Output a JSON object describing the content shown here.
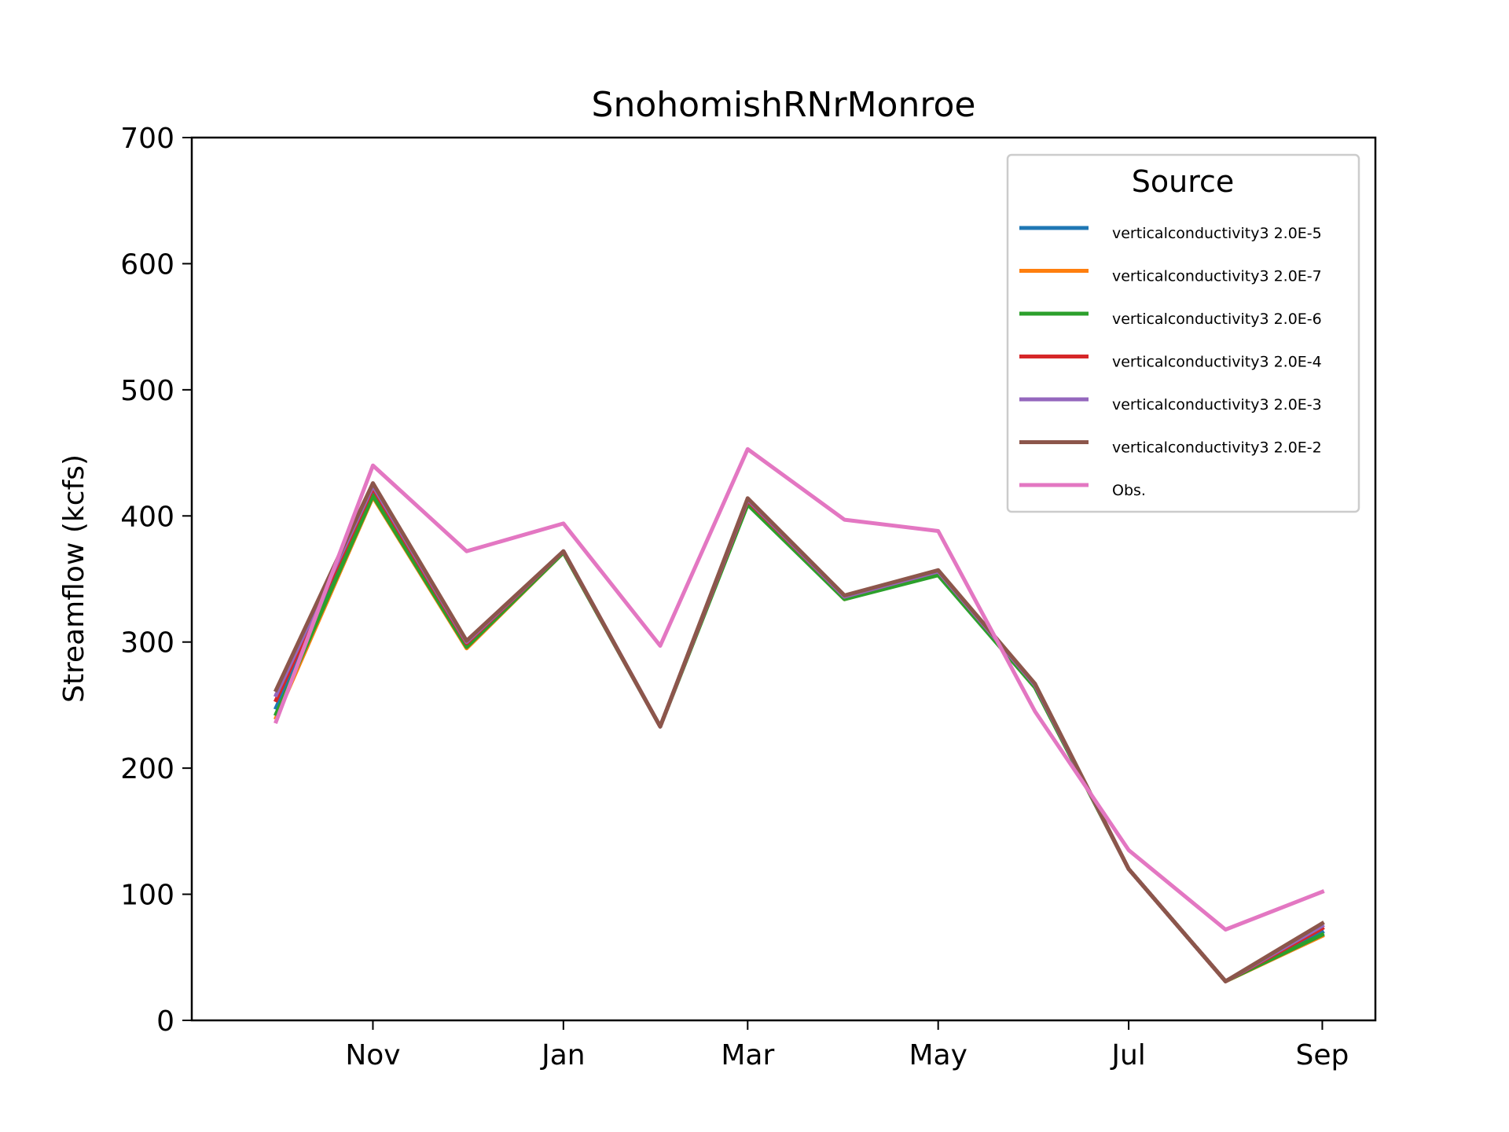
{
  "chart_data": {
    "type": "line",
    "title": "SnohomishRNrMonroe",
    "xlabel": "",
    "ylabel": "Streamflow (kcfs)",
    "x": [
      "2000-10-01",
      "2000-11-01",
      "2000-12-01",
      "2001-01-01",
      "2001-02-01",
      "2001-03-01",
      "2001-04-01",
      "2001-05-01",
      "2001-06-01",
      "2001-07-01",
      "2001-08-01",
      "2001-09-01"
    ],
    "xticks": [
      {
        "date": "2000-11-01",
        "label": "Nov"
      },
      {
        "date": "2001-01-01",
        "label": "Jan"
      },
      {
        "date": "2001-03-01",
        "label": "Mar"
      },
      {
        "date": "2001-05-01",
        "label": "May"
      },
      {
        "date": "2001-07-01",
        "label": "Jul"
      },
      {
        "date": "2001-09-01",
        "label": "Sep"
      }
    ],
    "xlim": [
      "2000-09-04",
      "2001-09-18"
    ],
    "ylim": [
      0,
      700
    ],
    "yticks": [
      0,
      100,
      200,
      300,
      400,
      500,
      600,
      700
    ],
    "grid": false,
    "legend": {
      "title": "Source",
      "placement": "upper-right"
    },
    "series": [
      {
        "name": "verticalconductivity3 2.0E-5",
        "color": "#1f77b4",
        "values": [
          248,
          418,
          298,
          371,
          233,
          410,
          335,
          355,
          265,
          120,
          31,
          70
        ]
      },
      {
        "name": "verticalconductivity3 2.0E-7",
        "color": "#ff7f0e",
        "values": [
          240,
          415,
          295,
          371,
          233,
          410,
          334,
          354,
          264,
          120,
          31,
          67
        ]
      },
      {
        "name": "verticalconductivity3 2.0E-6",
        "color": "#2ca02c",
        "values": [
          243,
          416,
          296,
          371,
          233,
          409,
          334,
          353,
          264,
          120,
          31,
          68
        ]
      },
      {
        "name": "verticalconductivity3 2.0E-4",
        "color": "#d62728",
        "values": [
          254,
          422,
          299,
          372,
          233,
          412,
          336,
          356,
          266,
          120,
          31,
          73
        ]
      },
      {
        "name": "verticalconductivity3 2.0E-3",
        "color": "#9467bd",
        "values": [
          258,
          424,
          300,
          372,
          233,
          413,
          336,
          356,
          266,
          120,
          31,
          75
        ]
      },
      {
        "name": "verticalconductivity3 2.0E-2",
        "color": "#8c564b",
        "values": [
          262,
          426,
          301,
          372,
          233,
          414,
          337,
          357,
          267,
          120,
          31,
          77
        ]
      },
      {
        "name": "Obs.",
        "color": "#e377c2",
        "values": [
          237,
          440,
          372,
          394,
          297,
          453,
          397,
          388,
          245,
          135,
          72,
          102
        ]
      }
    ]
  }
}
